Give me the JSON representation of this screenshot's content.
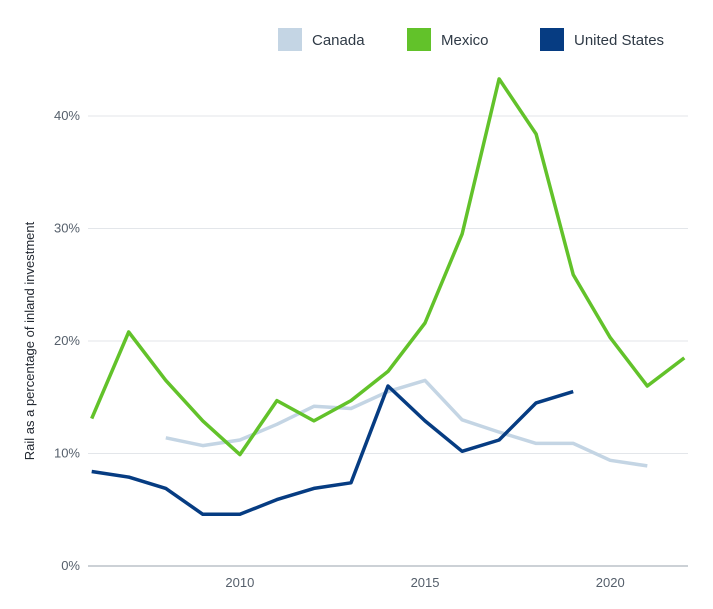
{
  "chart_data": {
    "type": "line",
    "title": "",
    "xlabel": "",
    "ylabel": "Rail as a percentage of inland investment",
    "xlim": [
      2005.9,
      2022.1
    ],
    "ylim": [
      0,
      45
    ],
    "xticks": [
      2010,
      2015,
      2020
    ],
    "yticks": [
      0,
      10,
      20,
      30,
      40
    ],
    "ytick_labels": [
      "0%",
      "10%",
      "20%",
      "30%",
      "40%"
    ],
    "grid": "horizontal",
    "legend_position": "top",
    "series": [
      {
        "name": "Canada",
        "color": "#c4d5e4",
        "points": [
          [
            2008,
            11.4
          ],
          [
            2009,
            10.7
          ],
          [
            2010,
            11.2
          ],
          [
            2011,
            12.6
          ],
          [
            2012,
            14.2
          ],
          [
            2013,
            14.0
          ],
          [
            2014,
            15.5
          ],
          [
            2015,
            16.5
          ],
          [
            2016,
            13.0
          ],
          [
            2017,
            11.9
          ],
          [
            2018,
            10.9
          ],
          [
            2019,
            10.9
          ],
          [
            2020,
            9.4
          ],
          [
            2021,
            8.9
          ]
        ]
      },
      {
        "name": "Mexico",
        "color": "#62c22a",
        "points": [
          [
            2006,
            13.1
          ],
          [
            2007,
            20.8
          ],
          [
            2008,
            16.5
          ],
          [
            2009,
            12.9
          ],
          [
            2010,
            9.9
          ],
          [
            2011,
            14.7
          ],
          [
            2012,
            12.9
          ],
          [
            2013,
            14.7
          ],
          [
            2014,
            17.3
          ],
          [
            2015,
            21.6
          ],
          [
            2016,
            29.5
          ],
          [
            2017,
            43.3
          ],
          [
            2018,
            38.4
          ],
          [
            2019,
            25.9
          ],
          [
            2020,
            20.3
          ],
          [
            2021,
            16.0
          ],
          [
            2022,
            18.5
          ]
        ]
      },
      {
        "name": "United States",
        "color": "#063c82",
        "points": [
          [
            2006,
            8.4
          ],
          [
            2007,
            7.9
          ],
          [
            2008,
            6.9
          ],
          [
            2009,
            4.6
          ],
          [
            2010,
            4.6
          ],
          [
            2011,
            5.9
          ],
          [
            2012,
            6.9
          ],
          [
            2013,
            7.4
          ],
          [
            2014,
            16.0
          ],
          [
            2015,
            12.9
          ],
          [
            2016,
            10.2
          ],
          [
            2017,
            11.2
          ],
          [
            2018,
            14.5
          ],
          [
            2019,
            15.5
          ]
        ]
      }
    ]
  }
}
